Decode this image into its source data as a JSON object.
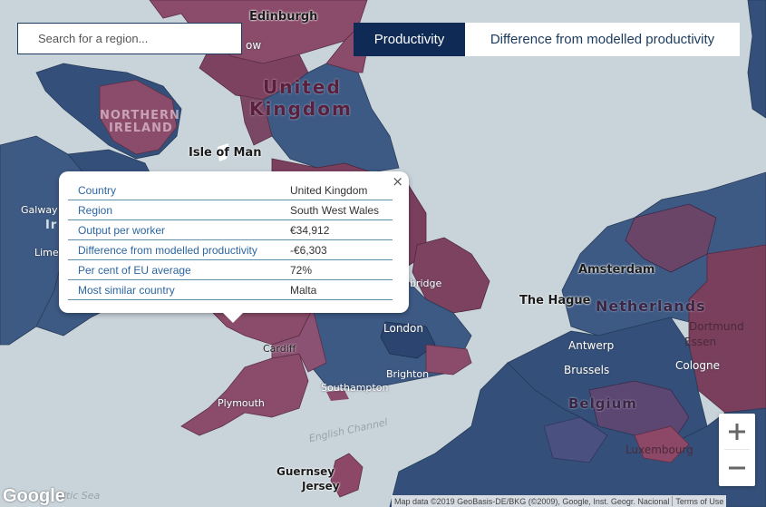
{
  "search": {
    "placeholder": "Search for a region..."
  },
  "toggle": {
    "active_label": "Productivity",
    "inactive_label": "Difference from modelled productivity"
  },
  "popup": {
    "rows": [
      {
        "label": "Country",
        "value": "United Kingdom"
      },
      {
        "label": "Region",
        "value": "South West Wales"
      },
      {
        "label": "Output per worker",
        "value": "€34,912"
      },
      {
        "label": "Difference from modelled productivity",
        "value": "-€6,303"
      },
      {
        "label": "Per cent of EU average",
        "value": "72%"
      },
      {
        "label": "Most similar country",
        "value": "Malta"
      }
    ],
    "close_glyph": "×"
  },
  "map_labels": {
    "edinburgh": "Edinburgh",
    "glasgow_partial": "ow",
    "united": "United",
    "kingdom": "Kingdom",
    "northern": "NORTHERN",
    "ireland_ni": "IRELAND",
    "isle_of_man": "Isle of Man",
    "galway": "Galway",
    "ir_partial": "Ir",
    "lime_partial": "Lime",
    "cambridge_partial": "bridge",
    "london": "London",
    "cardiff": "Cardiff",
    "brighton": "Brighton",
    "southampton": "Southampton",
    "plymouth": "Plymouth",
    "english_channel": "English Channel",
    "celtic_sea": "eltic Sea",
    "guernsey": "Guernsey",
    "jersey": "Jersey",
    "amsterdam": "Amsterdam",
    "the_hague": "The Hague",
    "netherlands": "Netherlands",
    "dortmund_partial": "Dortmund",
    "essen_partial": "Essen",
    "antwerp": "Antwerp",
    "brussels": "Brussels",
    "cologne": "Cologne",
    "belgium": "Belgium",
    "luxembourg": "Luxembourg"
  },
  "footer": {
    "logo": "Google",
    "map_data": "Map data ©2019 GeoBasis-DE/BKG (©2009), Google, Inst. Geogr. Nacional",
    "terms": "Terms of Use"
  },
  "colors": {
    "sea": "#c9d3da",
    "high_productivity": "#34507a",
    "low_productivity": "#8c4866",
    "accent_dark": "#0e2a55",
    "label_blue": "#2d66a0"
  },
  "icons": {
    "zoom_in": "plus-icon",
    "zoom_out": "minus-icon",
    "close": "close-icon"
  }
}
